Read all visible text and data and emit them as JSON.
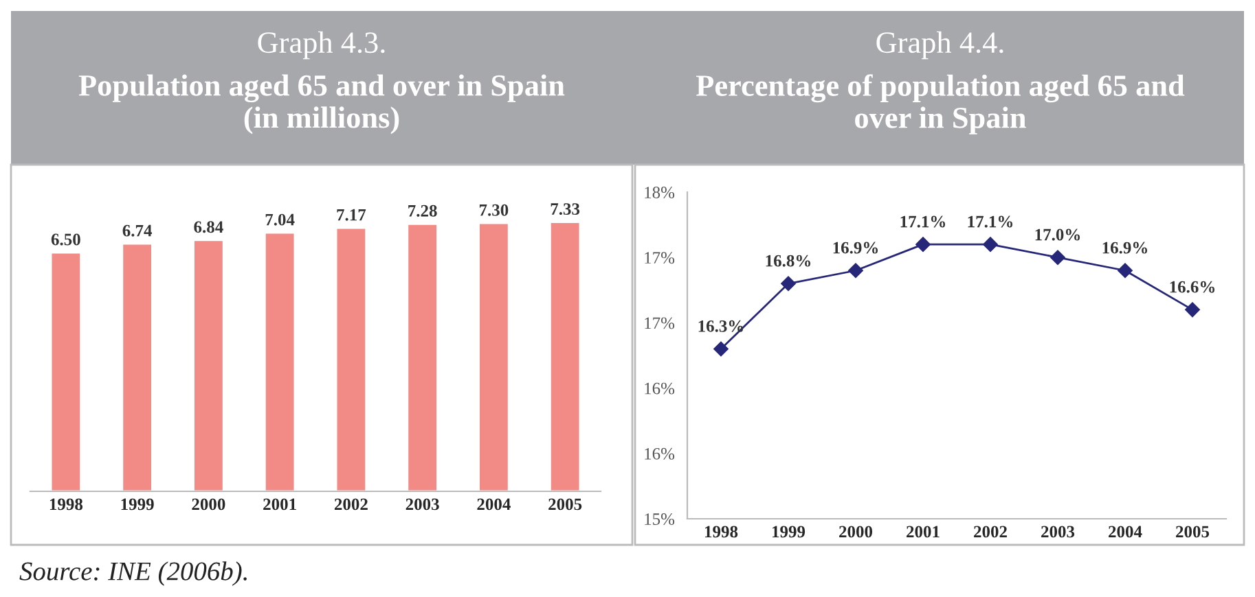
{
  "chart_data": [
    {
      "type": "bar",
      "title": "Graph 4.3.",
      "subtitle": "Population aged 65 and over in Spain\n(in millions)",
      "categories": [
        "1998",
        "1999",
        "2000",
        "2001",
        "2002",
        "2003",
        "2004",
        "2005"
      ],
      "values": [
        6.5,
        6.74,
        6.84,
        7.04,
        7.17,
        7.28,
        7.3,
        7.33
      ],
      "value_labels": [
        "6.50",
        "6.74",
        "6.84",
        "7.04",
        "7.17",
        "7.28",
        "7.30",
        "7.33"
      ],
      "color": "#f28b86",
      "tick_labels": "x",
      "grid": false,
      "legend": false
    },
    {
      "type": "line",
      "title": "Graph 4.4.",
      "subtitle": "Percentage of population aged 65 and\nover in Spain",
      "categories": [
        "1998",
        "1999",
        "2000",
        "2001",
        "2002",
        "2003",
        "2004",
        "2005"
      ],
      "series": [
        {
          "color": "#27277a",
          "values": [
            16.3,
            16.8,
            16.9,
            17.1,
            17.1,
            17.0,
            16.9,
            16.6
          ]
        }
      ],
      "value_labels": [
        "16.3%",
        "16.8%",
        "16.9%",
        "17.1%",
        "17.1%",
        "17.0%",
        "16.9%",
        "16.6%"
      ],
      "ylim": [
        15,
        17.5
      ],
      "yticks": [
        {
          "value": 15,
          "label": "15%"
        },
        {
          "value": 15.5,
          "label": "16%"
        },
        {
          "value": 16,
          "label": "16%"
        },
        {
          "value": 16.5,
          "label": "17%"
        },
        {
          "value": 17,
          "label": "17%"
        },
        {
          "value": 17.5,
          "label": "18%"
        }
      ],
      "marker": "diamond",
      "line_style": "solid",
      "grid": false,
      "legend": false,
      "annotations": [
        "Source: INE (2006b)."
      ]
    }
  ]
}
